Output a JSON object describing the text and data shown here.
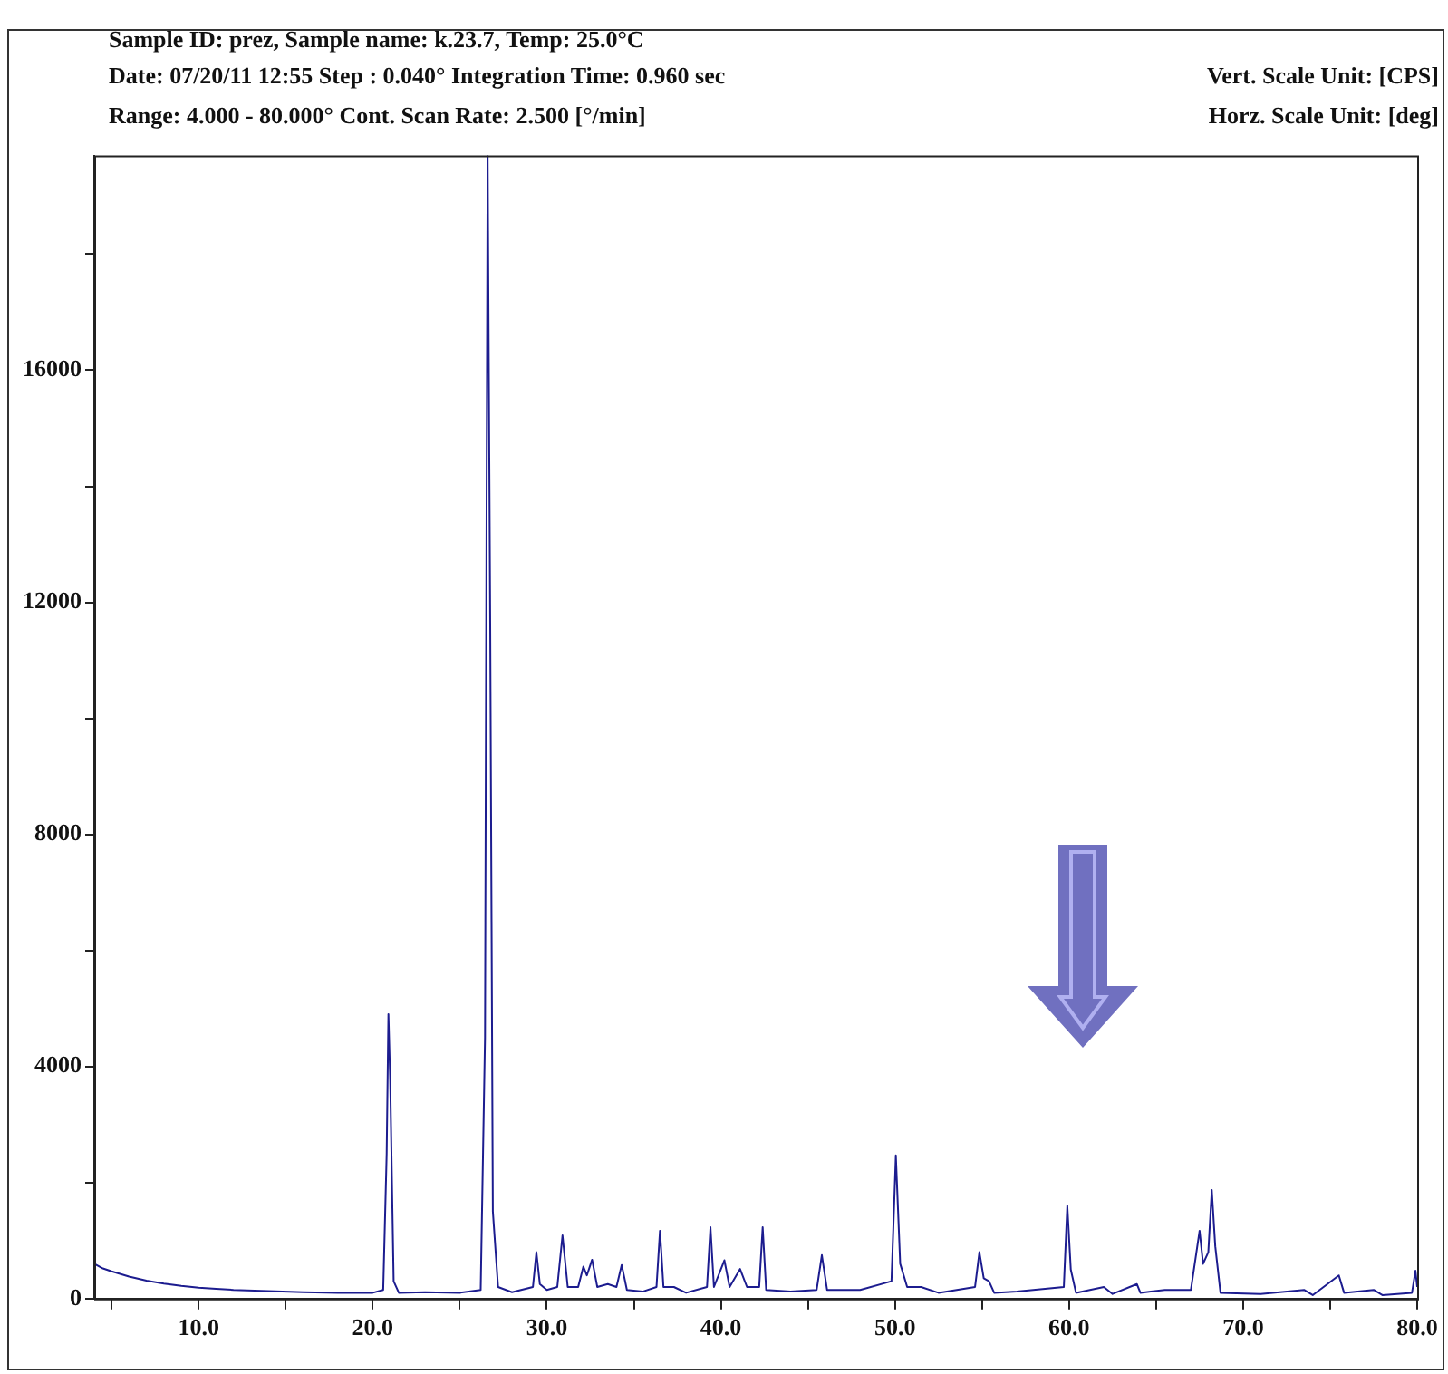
{
  "chart_data": {
    "type": "line",
    "title": "Sample ID: prez,   Sample name: k.23.7,   Temp: 25.0°C",
    "annotations": [
      "Date: 07/20/11 12:55  Step : 0.040° Integration Time: 0.960 sec",
      "Range: 4.000 - 80.000° Cont. Scan Rate: 2.500 [°/min]",
      "Vert. Scale Unit: [CPS]",
      "Horz. Scale Unit: [deg]"
    ],
    "x": [
      4,
      4.5,
      5,
      6,
      7,
      8,
      9,
      10,
      11,
      12,
      14,
      16,
      18,
      20,
      20.6,
      20.8,
      20.9,
      21.0,
      21.2,
      21.5,
      23,
      25,
      26.2,
      26.45,
      26.6,
      26.75,
      26.9,
      27.2,
      28,
      29.2,
      29.4,
      29.6,
      30,
      30.6,
      30.9,
      31.2,
      31.8,
      32.1,
      32.3,
      32.6,
      32.9,
      33.5,
      34,
      34.3,
      34.6,
      35.5,
      36.3,
      36.5,
      36.7,
      37.3,
      38,
      39.2,
      39.4,
      39.6,
      40.2,
      40.5,
      41.1,
      41.5,
      42.2,
      42.4,
      42.6,
      44,
      45.5,
      45.8,
      46.1,
      48,
      49.8,
      50.05,
      50.3,
      50.7,
      51.5,
      52.5,
      54.6,
      54.85,
      55.1,
      55.4,
      55.7,
      57,
      59.7,
      59.9,
      60.1,
      60.4,
      62,
      62.5,
      63.9,
      64.1,
      65.5,
      67,
      67.5,
      67.7,
      68.0,
      68.2,
      68.4,
      68.7,
      71,
      73.5,
      74,
      75.5,
      75.8,
      77.5,
      78,
      79.7,
      79.9,
      80
    ],
    "series": [
      {
        "color": "#1c1c8f",
        "values": [
          600,
          520,
          470,
          380,
          310,
          260,
          220,
          190,
          170,
          150,
          130,
          110,
          100,
          100,
          150,
          2500,
          4900,
          3800,
          300,
          100,
          110,
          100,
          150,
          4500,
          19700,
          11500,
          1500,
          200,
          110,
          200,
          800,
          250,
          150,
          200,
          1090,
          200,
          200,
          550,
          400,
          670,
          200,
          250,
          200,
          580,
          150,
          120,
          200,
          1170,
          200,
          200,
          100,
          200,
          1230,
          200,
          660,
          200,
          510,
          200,
          200,
          1230,
          150,
          120,
          150,
          750,
          150,
          150,
          300,
          2470,
          600,
          200,
          200,
          100,
          200,
          800,
          350,
          300,
          100,
          120,
          200,
          1600,
          500,
          100,
          200,
          80,
          250,
          100,
          150,
          150,
          1170,
          600,
          800,
          1870,
          900,
          100,
          80,
          150,
          60,
          400,
          100,
          150,
          60,
          100,
          480,
          200
        ]
      }
    ],
    "xlim": [
      4,
      80
    ],
    "xticks": [
      {
        "value": 5,
        "label": null
      },
      {
        "value": 10,
        "label": "10.0"
      },
      {
        "value": 15,
        "label": null
      },
      {
        "value": 20,
        "label": "20.0"
      },
      {
        "value": 25,
        "label": null
      },
      {
        "value": 30,
        "label": "30.0"
      },
      {
        "value": 35,
        "label": null
      },
      {
        "value": 40,
        "label": "40.0"
      },
      {
        "value": 45,
        "label": null
      },
      {
        "value": 50,
        "label": "50.0"
      },
      {
        "value": 55,
        "label": null
      },
      {
        "value": 60,
        "label": "60.0"
      },
      {
        "value": 65,
        "label": null
      },
      {
        "value": 70,
        "label": "70.0"
      },
      {
        "value": 75,
        "label": null
      },
      {
        "value": 80,
        "label": "80.0"
      }
    ],
    "ylim": [
      0,
      19700
    ],
    "yticks": [
      0,
      {
        "value": 2000,
        "label": null
      },
      4000,
      {
        "value": 6000,
        "label": null
      },
      8000,
      {
        "value": 10000,
        "label": null
      },
      12000,
      {
        "value": 14000,
        "label": null
      },
      16000,
      {
        "value": 18000,
        "label": null
      }
    ],
    "grid": false,
    "marker": "none",
    "line_style": "solid"
  }
}
